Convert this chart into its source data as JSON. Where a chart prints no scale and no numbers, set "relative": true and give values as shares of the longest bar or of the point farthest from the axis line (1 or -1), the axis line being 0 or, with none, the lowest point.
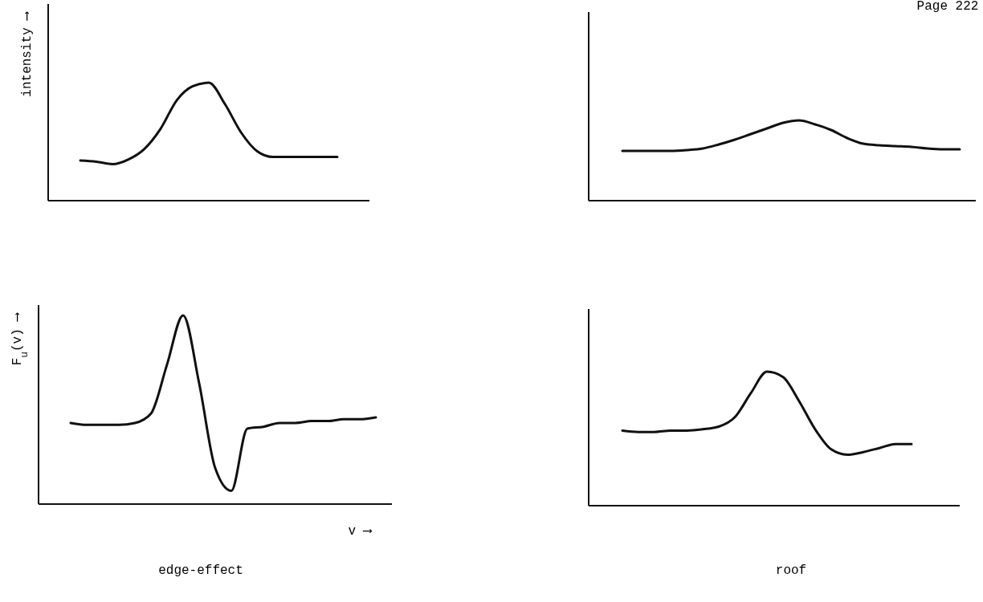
{
  "chart_data": [
    {
      "type": "line",
      "relative": true,
      "ylabel": "intensity ⟶",
      "color": "#111111",
      "categories": [
        null,
        null,
        null,
        null,
        null,
        null,
        null,
        null,
        null,
        null,
        null,
        null,
        null,
        null,
        null,
        null,
        null,
        null,
        null,
        null,
        null
      ],
      "values": [
        null,
        null,
        0.34,
        0.33,
        0.31,
        0.35,
        0.44,
        0.61,
        0.85,
        0.97,
        1,
        0.82,
        0.58,
        0.42,
        0.37,
        0.37,
        0.37,
        0.37,
        0.37,
        null,
        null
      ]
    },
    {
      "type": "line",
      "relative": true,
      "color": "#111111",
      "annotations": [
        "Page 222"
      ],
      "categories": [
        null,
        null,
        null,
        null,
        null,
        null,
        null,
        null,
        null,
        null,
        null,
        null,
        null,
        null,
        null,
        null,
        null,
        null,
        null,
        null,
        null,
        null,
        null,
        null,
        null
      ],
      "values": [
        null,
        null,
        0.62,
        0.62,
        0.62,
        0.62,
        0.63,
        0.65,
        0.7,
        0.76,
        0.83,
        0.9,
        0.97,
        1,
        0.95,
        0.88,
        0.78,
        0.71,
        0.69,
        0.68,
        0.67,
        0.65,
        0.64,
        0.64,
        null
      ]
    },
    {
      "type": "line",
      "relative": true,
      "ylabel": "F$_{u}$(v) ⟶",
      "xlabel": "v ⟶",
      "annotations": [
        "edge-effect"
      ],
      "color": "#111111",
      "categories": [
        null,
        null,
        null,
        null,
        null,
        null,
        null,
        null,
        null,
        null,
        null,
        null,
        null,
        null,
        null,
        null,
        null,
        null,
        null,
        null,
        null,
        null,
        null
      ],
      "values": [
        null,
        null,
        0.43,
        0.42,
        0.42,
        0.42,
        0.43,
        0.48,
        0.74,
        1,
        0.64,
        0.19,
        0.07,
        0.4,
        0.41,
        0.43,
        0.43,
        0.44,
        0.44,
        0.45,
        0.45,
        0.46,
        null
      ]
    },
    {
      "type": "line",
      "relative": true,
      "annotations": [
        "roof"
      ],
      "color": "#111111",
      "categories": [
        null,
        null,
        null,
        null,
        null,
        null,
        null,
        null,
        null,
        null,
        null,
        null,
        null,
        null,
        null,
        null,
        null,
        null,
        null,
        null,
        null,
        null,
        null,
        null
      ],
      "values": [
        null,
        null,
        0.56,
        0.55,
        0.55,
        0.56,
        0.56,
        0.57,
        0.59,
        0.66,
        0.84,
        1,
        0.96,
        0.78,
        0.57,
        0.42,
        0.38,
        0.4,
        0.43,
        0.46,
        0.46,
        null,
        null,
        null
      ]
    }
  ]
}
